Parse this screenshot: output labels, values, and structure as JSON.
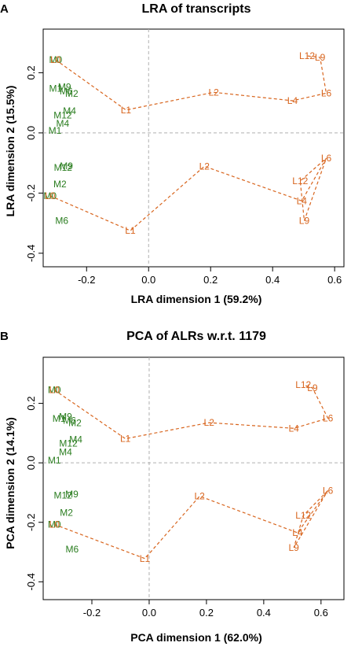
{
  "colors": {
    "L": "#d8651e",
    "M": "#2a7d1f",
    "axis": "#000000",
    "zero": "#b0b0b0"
  },
  "chart_data": [
    {
      "panel": "A",
      "type": "scatter",
      "title": "LRA of transcripts",
      "xlabel": "LRA dimension 1 (59.2%)",
      "ylabel": "LRA dimension 2 (15.5%)",
      "xlim": [
        -0.34,
        0.63
      ],
      "ylim": [
        -0.445,
        0.345
      ],
      "xticks": [
        "-0.2",
        "0.0",
        "0.2",
        "0.4",
        "0.6"
      ],
      "xtick_values": [
        -0.2,
        0.0,
        0.2,
        0.4,
        0.6
      ],
      "yticks": [
        "-0.4",
        "-0.2",
        "0.0",
        "0.2"
      ],
      "ytick_values": [
        -0.4,
        -0.2,
        0.0,
        0.2
      ],
      "zero_lines": true,
      "points_L": [
        {
          "label": "L0",
          "x": -0.3,
          "y": 0.243
        },
        {
          "label": "L1",
          "x": -0.073,
          "y": 0.076
        },
        {
          "label": "L2",
          "x": 0.21,
          "y": 0.135
        },
        {
          "label": "L4",
          "x": 0.464,
          "y": 0.107
        },
        {
          "label": "L6",
          "x": 0.573,
          "y": 0.132
        },
        {
          "label": "L9",
          "x": 0.553,
          "y": 0.251
        },
        {
          "label": "L12",
          "x": 0.511,
          "y": 0.256
        },
        {
          "label": "L0",
          "x": -0.318,
          "y": -0.209
        },
        {
          "label": "L1",
          "x": -0.059,
          "y": -0.325
        },
        {
          "label": "L2",
          "x": 0.18,
          "y": -0.111
        },
        {
          "label": "L4",
          "x": 0.494,
          "y": -0.226
        },
        {
          "label": "L6",
          "x": 0.573,
          "y": -0.084
        },
        {
          "label": "L9",
          "x": 0.502,
          "y": -0.292
        },
        {
          "label": "L12",
          "x": 0.489,
          "y": -0.16
        }
      ],
      "paths_L": [
        [
          0,
          1,
          2,
          3,
          4,
          5,
          6
        ],
        [
          7,
          8,
          9,
          10,
          11,
          12,
          13,
          11
        ]
      ],
      "points_M": [
        {
          "label": "M0",
          "x": -0.3,
          "y": 0.243
        },
        {
          "label": "M1",
          "x": -0.3,
          "y": 0.147
        },
        {
          "label": "M9",
          "x": -0.271,
          "y": 0.153
        },
        {
          "label": "M6",
          "x": -0.266,
          "y": 0.138
        },
        {
          "label": "M2",
          "x": -0.248,
          "y": 0.13
        },
        {
          "label": "M4",
          "x": -0.255,
          "y": 0.073
        },
        {
          "label": "M12",
          "x": -0.277,
          "y": 0.059
        },
        {
          "label": "M4",
          "x": -0.277,
          "y": 0.031
        },
        {
          "label": "M1",
          "x": -0.302,
          "y": 0.007
        },
        {
          "label": "M9",
          "x": -0.265,
          "y": -0.11
        },
        {
          "label": "M12",
          "x": -0.276,
          "y": -0.115
        },
        {
          "label": "M2",
          "x": -0.286,
          "y": -0.17
        },
        {
          "label": "M0",
          "x": -0.318,
          "y": -0.209
        },
        {
          "label": "M6",
          "x": -0.28,
          "y": -0.292
        }
      ]
    },
    {
      "panel": "B",
      "type": "scatter",
      "title": "PCA of ALRs w.r.t. 1179",
      "xlabel": "PCA dimension 1 (62.0%)",
      "ylabel": "PCA dimension 2 (14.1%)",
      "xlim": [
        -0.37,
        0.68
      ],
      "ylim": [
        -0.46,
        0.355
      ],
      "xticks": [
        "-0.2",
        "0.0",
        "0.2",
        "0.4",
        "0.6"
      ],
      "xtick_values": [
        -0.2,
        0.0,
        0.2,
        0.4,
        0.6
      ],
      "yticks": [
        "-0.4",
        "-0.2",
        "0.0",
        "0.2"
      ],
      "ytick_values": [
        -0.4,
        -0.2,
        0.0,
        0.2
      ],
      "zero_lines": true,
      "points_L": [
        {
          "label": "L0",
          "x": -0.331,
          "y": 0.245
        },
        {
          "label": "L1",
          "x": -0.083,
          "y": 0.081
        },
        {
          "label": "L2",
          "x": 0.209,
          "y": 0.135
        },
        {
          "label": "L4",
          "x": 0.505,
          "y": 0.116
        },
        {
          "label": "L6",
          "x": 0.624,
          "y": 0.15
        },
        {
          "label": "L9",
          "x": 0.57,
          "y": 0.252
        },
        {
          "label": "L12",
          "x": 0.538,
          "y": 0.262
        },
        {
          "label": "L0",
          "x": -0.331,
          "y": -0.207
        },
        {
          "label": "L1",
          "x": -0.015,
          "y": -0.322
        },
        {
          "label": "L2",
          "x": 0.176,
          "y": -0.112
        },
        {
          "label": "L4",
          "x": 0.518,
          "y": -0.235
        },
        {
          "label": "L6",
          "x": 0.624,
          "y": -0.093
        },
        {
          "label": "L9",
          "x": 0.505,
          "y": -0.285
        },
        {
          "label": "L12",
          "x": 0.538,
          "y": -0.177
        }
      ],
      "paths_L": [
        [
          0,
          1,
          2,
          3,
          4,
          5,
          6
        ],
        [
          7,
          8,
          9,
          10,
          11,
          12,
          13,
          11
        ]
      ],
      "points_M": [
        {
          "label": "M0",
          "x": -0.331,
          "y": 0.245
        },
        {
          "label": "M1",
          "x": -0.315,
          "y": 0.148
        },
        {
          "label": "M9",
          "x": -0.292,
          "y": 0.155
        },
        {
          "label": "M6",
          "x": -0.278,
          "y": 0.142
        },
        {
          "label": "M2",
          "x": -0.259,
          "y": 0.134
        },
        {
          "label": "M4",
          "x": -0.256,
          "y": 0.078
        },
        {
          "label": "M12",
          "x": -0.282,
          "y": 0.065
        },
        {
          "label": "M4",
          "x": -0.292,
          "y": 0.036
        },
        {
          "label": "M1",
          "x": -0.331,
          "y": 0.008
        },
        {
          "label": "M9",
          "x": -0.27,
          "y": -0.106
        },
        {
          "label": "M12",
          "x": -0.301,
          "y": -0.11
        },
        {
          "label": "M2",
          "x": -0.289,
          "y": -0.168
        },
        {
          "label": "M0",
          "x": -0.331,
          "y": -0.207
        },
        {
          "label": "M6",
          "x": -0.269,
          "y": -0.29
        }
      ]
    }
  ]
}
